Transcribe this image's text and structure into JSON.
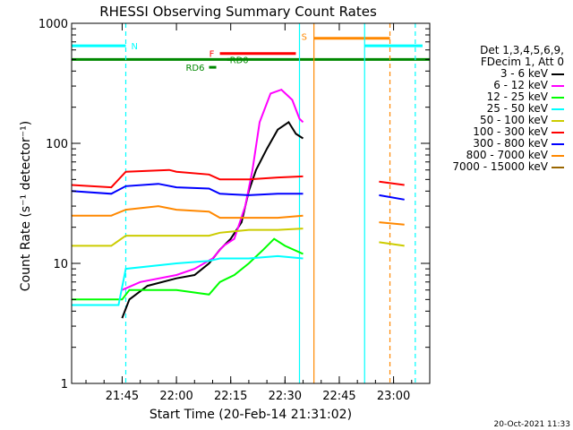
{
  "chart_data": {
    "type": "line",
    "title": "RHESSI Observing Summary Count Rates",
    "xlabel": "Start Time (20-Feb-14 21:31:02)",
    "ylabel": "Count Rate (s⁻¹ detector⁻¹)",
    "yscale": "log",
    "ylim": [
      1,
      1000
    ],
    "xlim": [
      "21:31",
      "23:10"
    ],
    "x_ticks": [
      "21:45",
      "22:00",
      "22:15",
      "22:30",
      "22:45",
      "23:00"
    ],
    "y_ticks": [
      "1",
      "10",
      "100",
      "1000"
    ],
    "timestamp": "20-Oct-2021 11:33",
    "legend": {
      "header1": "Det 1,3,4,5,6,9,",
      "header2": "FDecim 1, Att 0",
      "position": "right"
    },
    "series": [
      {
        "name": "3 - 6 keV",
        "color": "#000000",
        "points": [
          [
            "21:45",
            3.5
          ],
          [
            "21:47",
            5.0
          ],
          [
            "21:52",
            6.5
          ],
          [
            "22:00",
            7.5
          ],
          [
            "22:05",
            8
          ],
          [
            "22:09",
            10
          ],
          [
            "22:12",
            13
          ],
          [
            "22:15",
            16
          ],
          [
            "22:18",
            22
          ],
          [
            "22:20",
            40
          ],
          [
            "22:22",
            60
          ],
          [
            "22:25",
            90
          ],
          [
            "22:28",
            130
          ],
          [
            "22:31",
            150
          ],
          [
            "22:33",
            120
          ],
          [
            "22:35",
            110
          ]
        ]
      },
      {
        "name": "6 - 12 keV",
        "color": "#ff00ff",
        "points": [
          [
            "21:45",
            6.0
          ],
          [
            "21:50",
            7.0
          ],
          [
            "22:00",
            8.0
          ],
          [
            "22:05",
            9
          ],
          [
            "22:10",
            11
          ],
          [
            "22:13",
            14
          ],
          [
            "22:16",
            16
          ],
          [
            "22:19",
            30
          ],
          [
            "22:21",
            60
          ],
          [
            "22:23",
            150
          ],
          [
            "22:26",
            260
          ],
          [
            "22:29",
            280
          ],
          [
            "22:32",
            230
          ],
          [
            "22:34",
            160
          ],
          [
            "22:35",
            150
          ]
        ]
      },
      {
        "name": "12 - 25 keV",
        "color": "#00ff00",
        "points": [
          [
            "21:31",
            5.0
          ],
          [
            "21:45",
            5.0
          ],
          [
            "21:47",
            6.0
          ],
          [
            "22:00",
            6.0
          ],
          [
            "22:09",
            5.5
          ],
          [
            "22:12",
            7
          ],
          [
            "22:16",
            8
          ],
          [
            "22:20",
            10
          ],
          [
            "22:24",
            13
          ],
          [
            "22:27",
            16
          ],
          [
            "22:30",
            14
          ],
          [
            "22:35",
            12
          ]
        ]
      },
      {
        "name": "25 - 50 keV",
        "color": "#00ffff",
        "points": [
          [
            "21:31",
            4.5
          ],
          [
            "21:44",
            4.5
          ],
          [
            "21:46",
            9.0
          ],
          [
            "22:00",
            10
          ],
          [
            "22:09",
            10.5
          ],
          [
            "22:12",
            11
          ],
          [
            "22:20",
            11
          ],
          [
            "22:28",
            11.5
          ],
          [
            "22:35",
            11
          ]
        ]
      },
      {
        "name": "50 - 100 keV",
        "color": "#cccc00",
        "points": [
          [
            "21:31",
            14
          ],
          [
            "21:42",
            14
          ],
          [
            "21:46",
            17
          ],
          [
            "22:00",
            17
          ],
          [
            "22:09",
            17
          ],
          [
            "22:12",
            18
          ],
          [
            "22:20",
            19
          ],
          [
            "22:28",
            19
          ],
          [
            "22:35",
            19.5
          ],
          [
            "22:56",
            15
          ],
          [
            "23:03",
            14
          ]
        ]
      },
      {
        "name": "100 - 300 keV",
        "color": "#ff0000",
        "points": [
          [
            "21:31",
            45
          ],
          [
            "21:42",
            43
          ],
          [
            "21:46",
            58
          ],
          [
            "21:58",
            60
          ],
          [
            "22:00",
            58
          ],
          [
            "22:09",
            55
          ],
          [
            "22:12",
            50
          ],
          [
            "22:20",
            50
          ],
          [
            "22:28",
            52
          ],
          [
            "22:35",
            53
          ],
          [
            "22:56",
            48
          ],
          [
            "23:03",
            45
          ]
        ]
      },
      {
        "name": "300 - 800 keV",
        "color": "#0000ff",
        "points": [
          [
            "21:31",
            40
          ],
          [
            "21:42",
            38
          ],
          [
            "21:46",
            44
          ],
          [
            "21:55",
            46
          ],
          [
            "22:00",
            43
          ],
          [
            "22:09",
            42
          ],
          [
            "22:12",
            38
          ],
          [
            "22:20",
            37
          ],
          [
            "22:28",
            38
          ],
          [
            "22:35",
            38
          ],
          [
            "22:56",
            37
          ],
          [
            "23:03",
            34
          ]
        ]
      },
      {
        "name": "800 - 7000 keV",
        "color": "#ff8800",
        "points": [
          [
            "21:31",
            25
          ],
          [
            "21:42",
            25
          ],
          [
            "21:46",
            28
          ],
          [
            "21:55",
            30
          ],
          [
            "22:00",
            28
          ],
          [
            "22:09",
            27
          ],
          [
            "22:12",
            24
          ],
          [
            "22:20",
            24
          ],
          [
            "22:28",
            24
          ],
          [
            "22:35",
            25
          ],
          [
            "22:56",
            22
          ],
          [
            "23:03",
            21
          ]
        ]
      },
      {
        "name": "7000 - 15000 keV",
        "color": "#996600",
        "points": []
      }
    ],
    "annotations": [
      {
        "label": "N",
        "color": "#00ffff",
        "y": 650,
        "from": "21:31",
        "to": "21:46"
      },
      {
        "label": "",
        "color": "#00ffff",
        "y": 650,
        "from": "22:52",
        "to": "23:08"
      },
      {
        "label": "S",
        "color": "#ff8800",
        "y": 750,
        "from": "22:38",
        "to": "22:59"
      },
      {
        "label": "F",
        "color": "#ff0000",
        "y": 560,
        "from": "22:12",
        "to": "22:33"
      },
      {
        "label": "RD0",
        "color": "#008800",
        "y": 500,
        "from": "22:14",
        "to": "22:14"
      },
      {
        "label": "RD6",
        "color": "#008800",
        "y": 430,
        "from": "22:09",
        "to": "22:11"
      },
      {
        "label": "",
        "color": "#008800",
        "y": 500,
        "from": "21:31",
        "to": "23:10"
      }
    ],
    "vlines": [
      {
        "x": "21:46",
        "color": "#00ffff",
        "dash": true
      },
      {
        "x": "22:34",
        "color": "#00ffff",
        "dash": false
      },
      {
        "x": "22:38",
        "color": "#ff8800",
        "dash": false
      },
      {
        "x": "22:52",
        "color": "#00ffff",
        "dash": false
      },
      {
        "x": "22:59",
        "color": "#ff8800",
        "dash": true
      },
      {
        "x": "23:06",
        "color": "#00ffff",
        "dash": true
      }
    ]
  }
}
